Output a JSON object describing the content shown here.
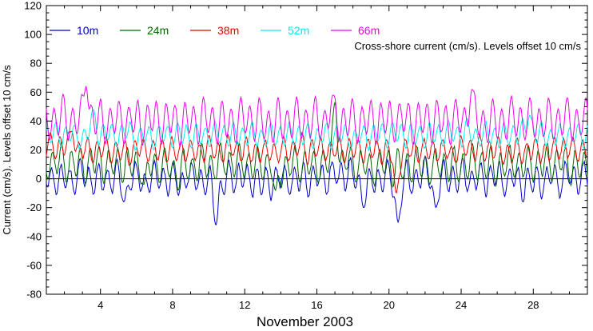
{
  "chart_data": {
    "type": "line",
    "xlabel": "November 2003",
    "ylabel": "Current (cm/s). Levels offset 10 cm/s",
    "annotation": "Cross-shore current (cm/s). Levels offset 10 cm/s",
    "xlim": [
      1,
      31
    ],
    "ylim": [
      -80,
      120
    ],
    "xticks": [
      4,
      8,
      12,
      16,
      20,
      24,
      28
    ],
    "yticks": [
      -80,
      -60,
      -40,
      -20,
      0,
      20,
      40,
      60,
      80,
      100,
      120
    ],
    "zero_line": 0,
    "grid": false,
    "legend_position": "top",
    "series": [
      {
        "name": "10m",
        "color": "#0000cc",
        "offset": 0,
        "amplitude": 9,
        "noise": 6,
        "seed": 11,
        "spikes": [
          [
            5.3,
            -16
          ],
          [
            10.4,
            -32
          ],
          [
            18.6,
            -20
          ],
          [
            20.5,
            -30
          ],
          [
            22.6,
            -20
          ]
        ]
      },
      {
        "name": "24m",
        "color": "#006600",
        "offset": 10,
        "amplitude": 10,
        "noise": 5,
        "seed": 23,
        "spikes": [
          [
            17.0,
            53
          ],
          [
            6.4,
            -4
          ],
          [
            13.7,
            -8
          ]
        ]
      },
      {
        "name": "38m",
        "color": "#ee0000",
        "offset": 20,
        "amplitude": 7,
        "noise": 4,
        "seed": 37,
        "spikes": [
          [
            2.4,
            33
          ],
          [
            20.4,
            -10
          ]
        ]
      },
      {
        "name": "52m",
        "color": "#00eeee",
        "offset": 30,
        "amplitude": 7,
        "noise": 3,
        "seed": 52,
        "spikes": [
          [
            3.6,
            48
          ],
          [
            27.8,
            44
          ]
        ]
      },
      {
        "name": "66m",
        "color": "#ee00ee",
        "offset": 40,
        "amplitude": 12,
        "noise": 3,
        "seed": 66,
        "spikes": [
          [
            3.2,
            64
          ],
          [
            24.6,
            62
          ],
          [
            16.9,
            58
          ]
        ]
      }
    ]
  }
}
